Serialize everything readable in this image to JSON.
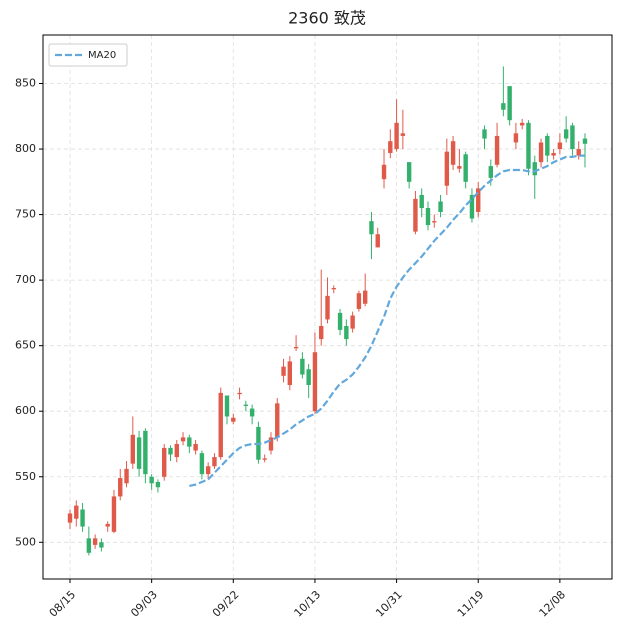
{
  "chart_data": {
    "type": "candlestick",
    "title": "2360 致茂",
    "categories": [
      "08/15",
      null,
      null,
      null,
      null,
      null,
      null,
      null,
      null,
      null,
      null,
      null,
      null,
      "09/03",
      null,
      null,
      null,
      null,
      null,
      null,
      null,
      null,
      null,
      null,
      null,
      null,
      "09/22",
      null,
      null,
      null,
      null,
      null,
      null,
      null,
      null,
      null,
      null,
      null,
      null,
      "10/13",
      null,
      null,
      null,
      null,
      null,
      null,
      null,
      null,
      null,
      null,
      null,
      null,
      "10/31",
      null,
      null,
      null,
      null,
      null,
      null,
      null,
      null,
      null,
      null,
      null,
      null,
      "11/19",
      null,
      null,
      null,
      null,
      null,
      null,
      null,
      null,
      null,
      null,
      null,
      null,
      "12/08",
      null,
      null,
      null,
      null
    ],
    "open": [
      515,
      518,
      525,
      503,
      498,
      500,
      512,
      508,
      535,
      545,
      560,
      580,
      585,
      550,
      546,
      550,
      572,
      565,
      577,
      580,
      570,
      568,
      552,
      558,
      565,
      612,
      592,
      613,
      605,
      602,
      588,
      563,
      570,
      580,
      627,
      620,
      648,
      640,
      632,
      600,
      655,
      670,
      693,
      675,
      665,
      663,
      678,
      682,
      745,
      725,
      777,
      797,
      800,
      810,
      790,
      737,
      765,
      755,
      744,
      760,
      772,
      788,
      785,
      796,
      765,
      752,
      815,
      787,
      788,
      835,
      848,
      805,
      818,
      820,
      790,
      790,
      810,
      795,
      800,
      815,
      818,
      795,
      808
    ],
    "high": [
      525,
      532,
      530,
      512,
      506,
      503,
      516,
      540,
      556,
      562,
      596,
      585,
      587,
      552,
      548,
      575,
      574,
      578,
      584,
      582,
      578,
      570,
      561,
      568,
      618,
      612,
      598,
      618,
      608,
      605,
      592,
      567,
      584,
      610,
      640,
      642,
      658,
      645,
      636,
      660,
      708,
      702,
      696,
      678,
      670,
      676,
      692,
      705,
      752,
      740,
      800,
      815,
      838,
      830,
      790,
      768,
      770,
      760,
      750,
      765,
      808,
      810,
      800,
      798,
      770,
      775,
      818,
      792,
      820,
      863,
      848,
      820,
      823,
      822,
      795,
      808,
      812,
      800,
      812,
      825,
      820,
      806,
      812
    ],
    "low": [
      510,
      512,
      508,
      490,
      495,
      493,
      508,
      507,
      532,
      542,
      556,
      550,
      545,
      540,
      538,
      547,
      562,
      561,
      574,
      568,
      567,
      548,
      548,
      556,
      563,
      590,
      590,
      609,
      600,
      590,
      560,
      561,
      567,
      577,
      622,
      616,
      646,
      625,
      610,
      598,
      650,
      667,
      690,
      658,
      650,
      660,
      676,
      680,
      716,
      725,
      770,
      793,
      798,
      800,
      770,
      735,
      748,
      738,
      740,
      748,
      765,
      784,
      782,
      770,
      744,
      748,
      800,
      772,
      786,
      825,
      818,
      800,
      815,
      780,
      762,
      786,
      790,
      792,
      796,
      805,
      795,
      792,
      786
    ],
    "close": [
      522,
      528,
      512,
      492,
      503,
      496,
      514,
      535,
      549,
      556,
      582,
      556,
      552,
      545,
      542,
      572,
      567,
      575,
      580,
      573,
      575,
      552,
      558,
      565,
      614,
      596,
      595,
      614,
      604,
      596,
      563,
      564,
      580,
      606,
      634,
      638,
      649,
      628,
      620,
      645,
      665,
      688,
      694,
      662,
      655,
      673,
      690,
      692,
      735,
      735,
      788,
      806,
      820,
      812,
      775,
      762,
      755,
      742,
      745,
      752,
      798,
      806,
      787,
      775,
      747,
      770,
      808,
      778,
      810,
      830,
      822,
      812,
      820,
      785,
      780,
      805,
      795,
      797,
      805,
      808,
      800,
      800,
      804
    ],
    "up_color": "#e05a4a",
    "down_color": "#33b06b",
    "series": [
      {
        "name": "MA20",
        "color": "#62a8dc",
        "values": [
          null,
          null,
          null,
          null,
          null,
          null,
          null,
          null,
          null,
          null,
          null,
          null,
          null,
          null,
          null,
          null,
          null,
          null,
          null,
          543,
          544,
          546,
          548,
          553,
          558,
          563,
          568,
          572,
          574,
          575,
          575,
          576,
          578,
          580,
          583,
          586,
          590,
          593,
          596,
          598,
          602,
          608,
          615,
          621,
          624,
          628,
          634,
          641,
          650,
          661,
          672,
          686,
          695,
          702,
          708,
          713,
          718,
          724,
          730,
          735,
          740,
          746,
          751,
          757,
          762,
          767,
          772,
          776,
          780,
          783,
          784,
          784,
          784,
          783,
          783,
          785,
          787,
          790,
          792,
          794,
          794,
          795,
          795
        ]
      }
    ],
    "ylim": [
      472,
      887
    ],
    "yticks": [
      500,
      550,
      600,
      650,
      700,
      750,
      800,
      850
    ],
    "grid": true,
    "legend": "upper left"
  }
}
